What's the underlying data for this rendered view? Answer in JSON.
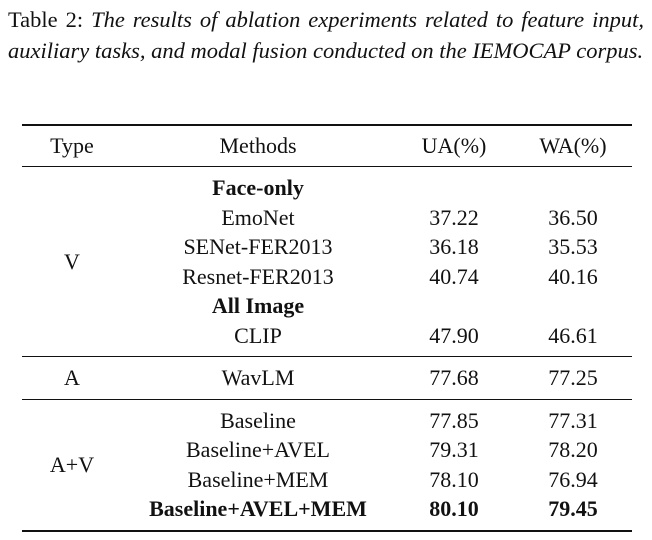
{
  "caption": {
    "label": "Table 2:",
    "text": "The results of ablation experiments related to feature input, auxiliary tasks, and modal fusion conducted on the IEMOCAP corpus."
  },
  "table": {
    "headers": [
      "Type",
      "Methods",
      "UA(%)",
      "WA(%)"
    ],
    "groups": [
      {
        "type": "V",
        "rows": [
          {
            "heading": "Face-only"
          },
          {
            "method": "EmoNet",
            "ua": "37.22",
            "wa": "36.50"
          },
          {
            "method": "SENet-FER2013",
            "ua": "36.18",
            "wa": "35.53"
          },
          {
            "method": "Resnet-FER2013",
            "ua": "40.74",
            "wa": "40.16"
          },
          {
            "heading": "All Image"
          },
          {
            "method": "CLIP",
            "ua": "47.90",
            "wa": "46.61"
          }
        ]
      },
      {
        "type": "A",
        "rows": [
          {
            "method": "WavLM",
            "ua": "77.68",
            "wa": "77.25"
          }
        ]
      },
      {
        "type": "A+V",
        "rows": [
          {
            "method": "Baseline",
            "ua": "77.85",
            "wa": "77.31"
          },
          {
            "method": "Baseline+AVEL",
            "ua": "79.31",
            "wa": "78.20"
          },
          {
            "method": "Baseline+MEM",
            "ua": "78.10",
            "wa": "76.94"
          },
          {
            "method": "Baseline+AVEL+MEM",
            "ua": "80.10",
            "wa": "79.45"
          }
        ]
      }
    ]
  }
}
